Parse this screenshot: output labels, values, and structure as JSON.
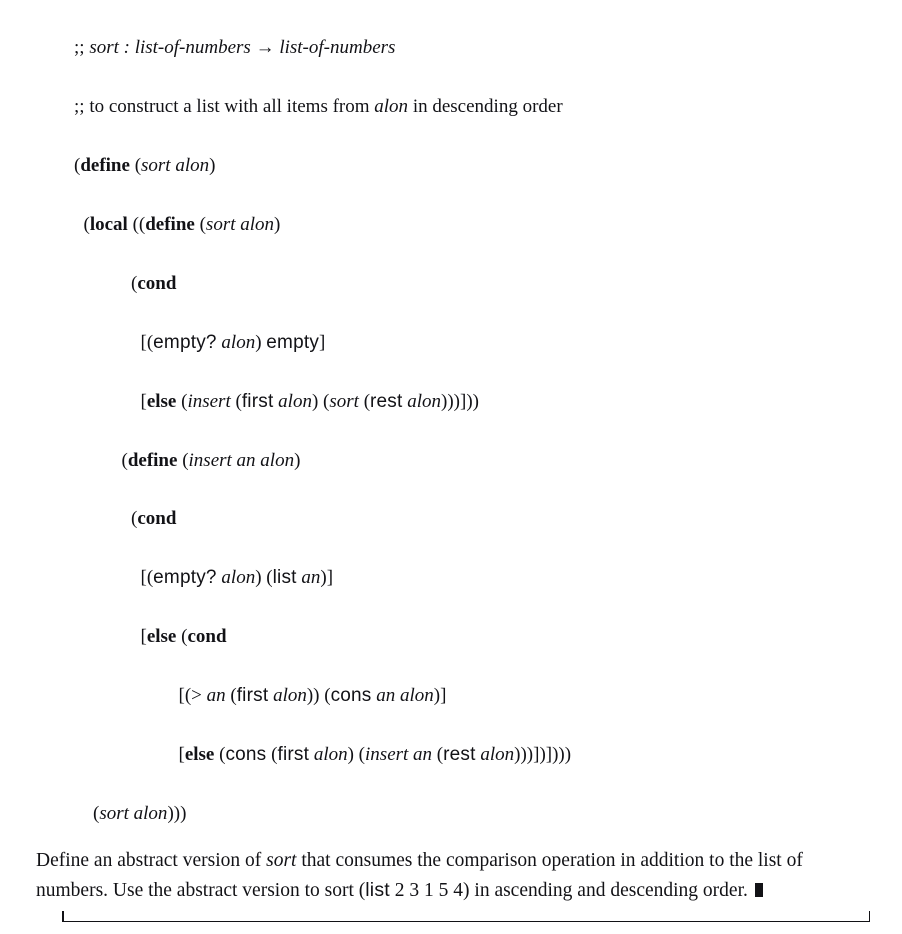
{
  "code": {
    "l01a": ";; ",
    "l01b": "sort : list-of-numbers ",
    "l01c": "→",
    "l01d": " list-of-numbers",
    "l02a": ";; ",
    "l02b": "to construct a list with all items from ",
    "l02c": "alon",
    "l02d": " in descending order",
    "l03a": "(",
    "l03b": "define",
    "l03c": " (",
    "l03d": "sort alon",
    "l03e": ")",
    "l04a": "  (",
    "l04b": "local",
    "l04c": " ((",
    "l04d": "define",
    "l04e": " (",
    "l04f": "sort alon",
    "l04g": ")",
    "l05a": "            (",
    "l05b": "cond",
    "l06a": "              [(",
    "l06b": "empty?",
    "l06c": " ",
    "l06d": "alon",
    "l06e": ") ",
    "l06f": "empty",
    "l06g": "]",
    "l07a": "              [",
    "l07b": "else",
    "l07c": " (",
    "l07d": "insert",
    "l07e": " (",
    "l07f": "first",
    "l07g": " ",
    "l07h": "alon",
    "l07i": ") (",
    "l07j": "sort",
    "l07k": " (",
    "l07l": "rest",
    "l07m": " ",
    "l07n": "alon",
    "l07o": ")))]))",
    "l08a": "          (",
    "l08b": "define",
    "l08c": " (",
    "l08d": "insert an alon",
    "l08e": ")",
    "l09a": "            (",
    "l09b": "cond",
    "l10a": "              [(",
    "l10b": "empty?",
    "l10c": " ",
    "l10d": "alon",
    "l10e": ") (",
    "l10f": "list",
    "l10g": " ",
    "l10h": "an",
    "l10i": ")]",
    "l11a": "              [",
    "l11b": "else",
    "l11c": " (",
    "l11d": "cond",
    "l12a": "                      [(> ",
    "l12b": "an",
    "l12c": " (",
    "l12d": "first",
    "l12e": " ",
    "l12f": "alon",
    "l12g": ")) (",
    "l12h": "cons",
    "l12i": " ",
    "l12j": "an alon",
    "l12k": ")]",
    "l13a": "                      [",
    "l13b": "else",
    "l13c": " (",
    "l13d": "cons",
    "l13e": " (",
    "l13f": "first",
    "l13g": " ",
    "l13h": "alon",
    "l13i": ") (",
    "l13j": "insert an",
    "l13k": " (",
    "l13l": "rest",
    "l13m": " ",
    "l13n": "alon",
    "l13o": ")))])])))",
    "l14a": "    (",
    "l14b": "sort alon",
    "l14c": ")))"
  },
  "para": {
    "p1a": "Define an abstract version of ",
    "p1b": "sort",
    "p1c": " that consumes the comparison operation in addition to the list of numbers. Use the abstract version to sort (",
    "p1d": "list",
    "p1e": " 2 3 1 5 4) in ascending and descending order."
  }
}
